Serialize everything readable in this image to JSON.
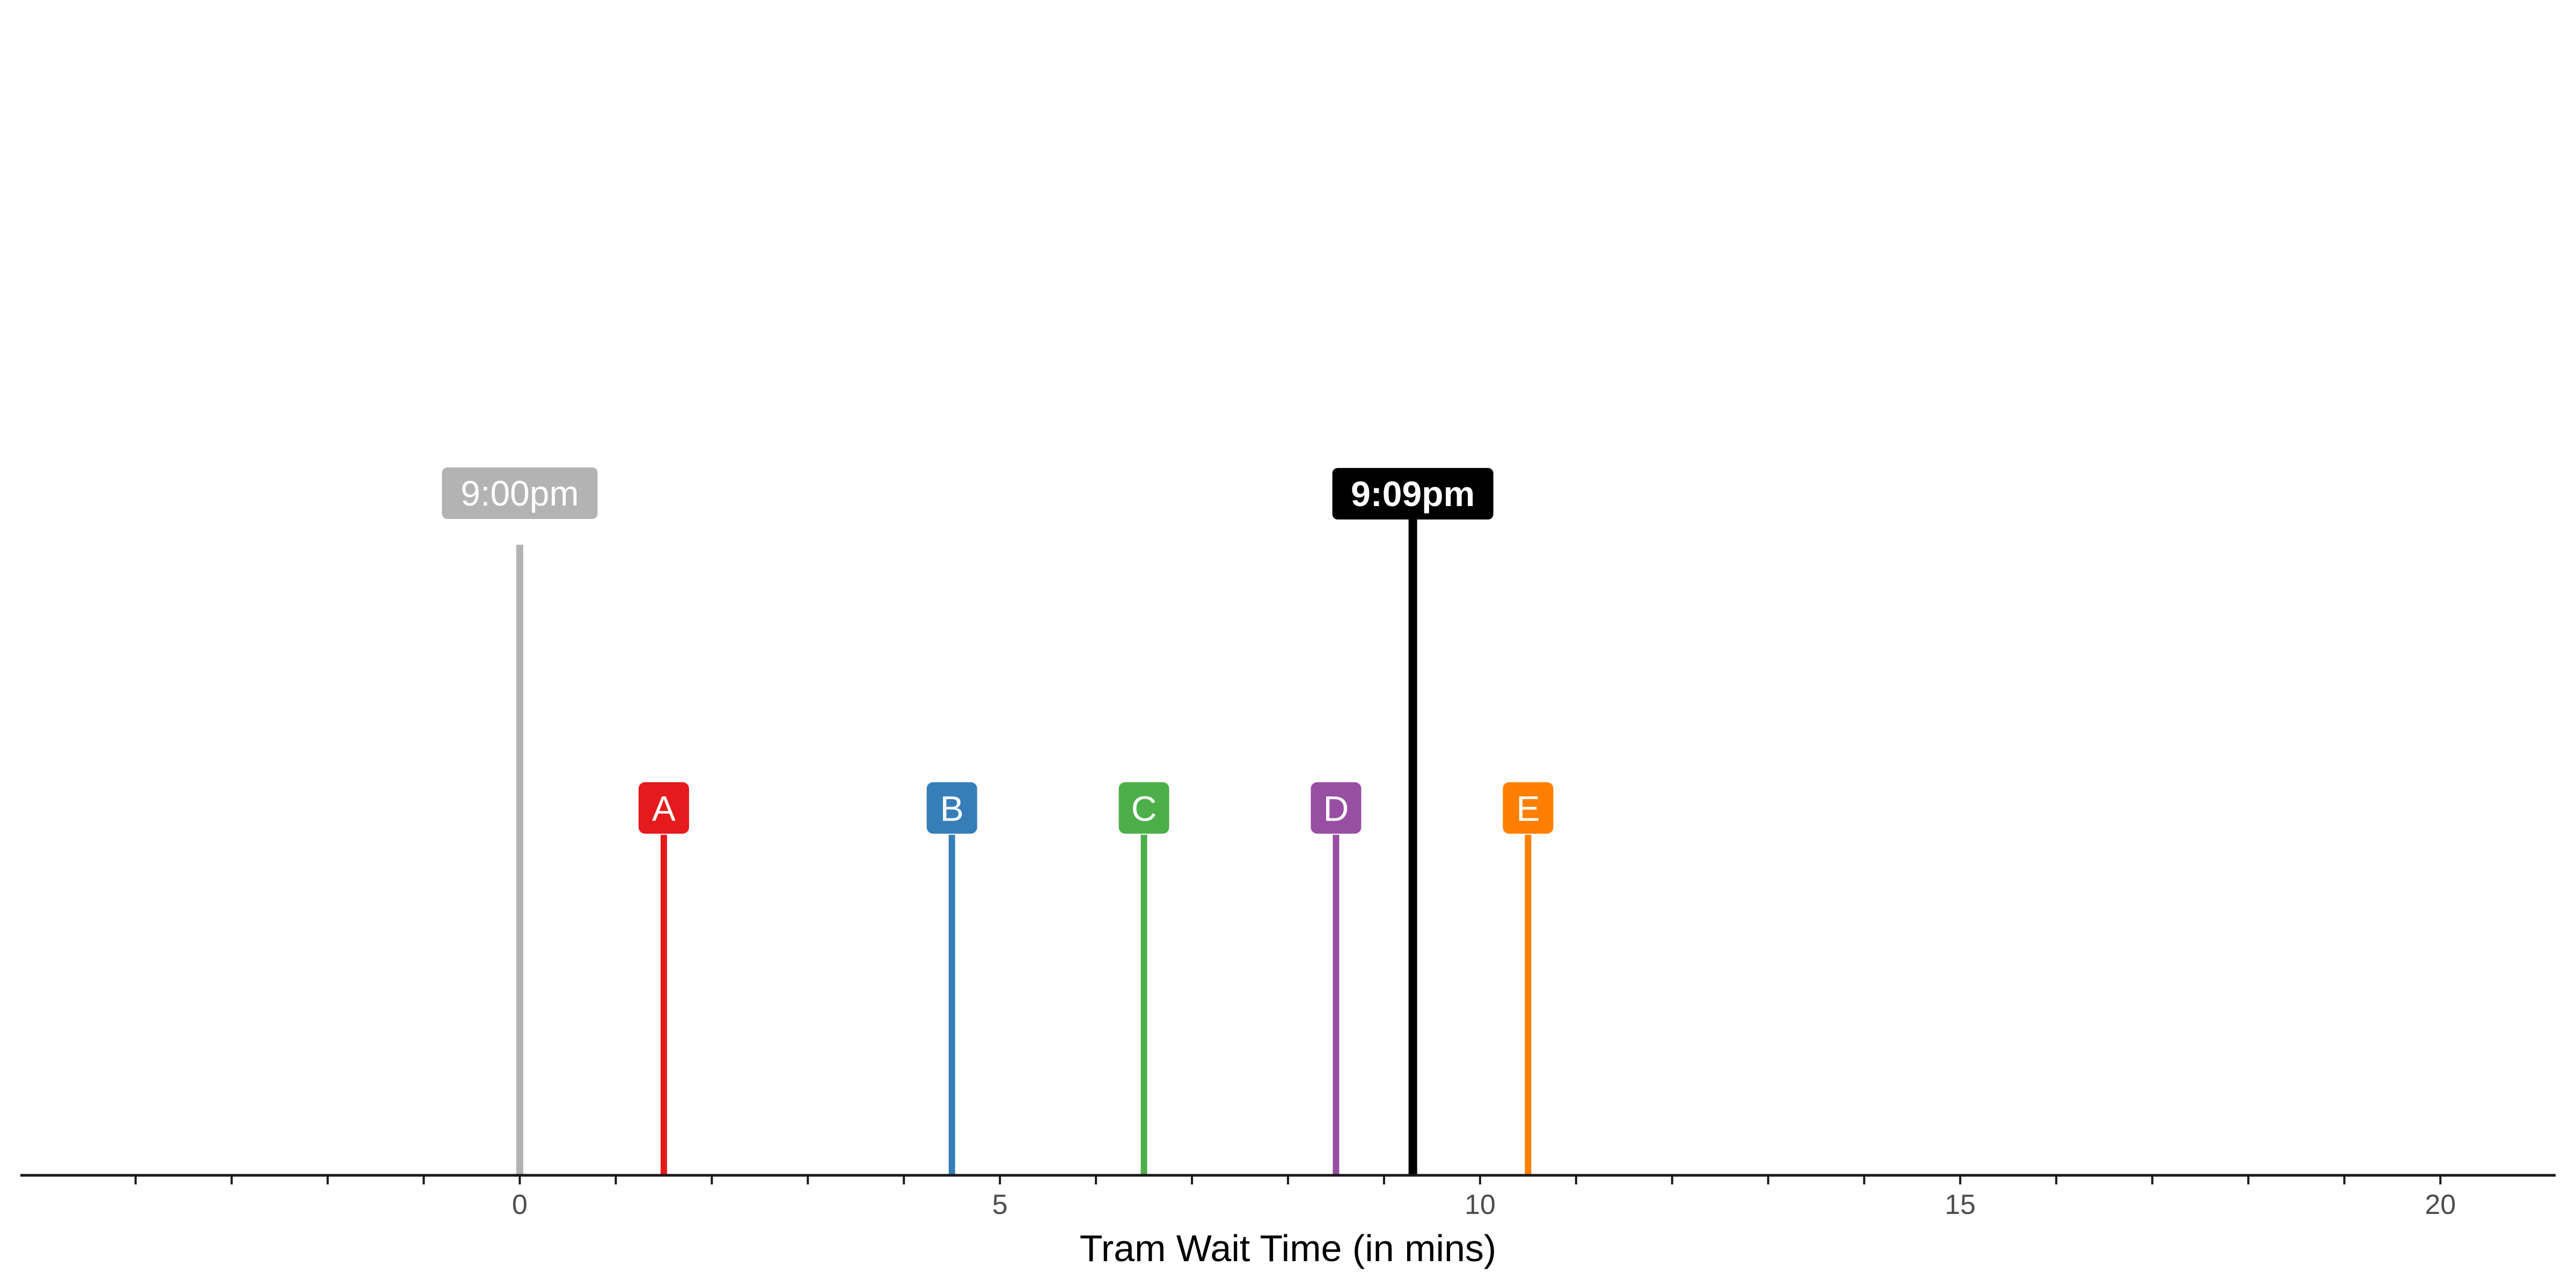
{
  "chart_data": {
    "type": "timeline",
    "xlabel": "Tram Wait Time (in mins)",
    "xlim": [
      -5.2,
      21.2
    ],
    "ticks_major": [
      0,
      5,
      10,
      15,
      20
    ],
    "tick_labels": [
      "0",
      "5",
      "10",
      "15",
      "20"
    ],
    "ticks_minor": [
      -4,
      -3,
      -2,
      -1,
      1,
      2,
      3,
      4,
      6,
      7,
      8,
      9,
      11,
      12,
      13,
      14,
      16,
      17,
      18,
      19
    ],
    "grid": false,
    "time_markers": [
      {
        "label": "9:00pm",
        "x": 0,
        "color": "#b3b3b3",
        "bold": false,
        "height": 1.0
      },
      {
        "label": "9:09pm",
        "x": 9.3,
        "color": "#000000",
        "bold": true,
        "height": 1.04
      }
    ],
    "trams": [
      {
        "label": "A",
        "x": 1.5,
        "color": "#e41a1c"
      },
      {
        "label": "B",
        "x": 4.5,
        "color": "#377eb8"
      },
      {
        "label": "C",
        "x": 6.5,
        "color": "#4daf4a"
      },
      {
        "label": "D",
        "x": 8.5,
        "color": "#984ea3"
      },
      {
        "label": "E",
        "x": 10.5,
        "color": "#ff7f00"
      }
    ],
    "tram_height": 0.54
  }
}
